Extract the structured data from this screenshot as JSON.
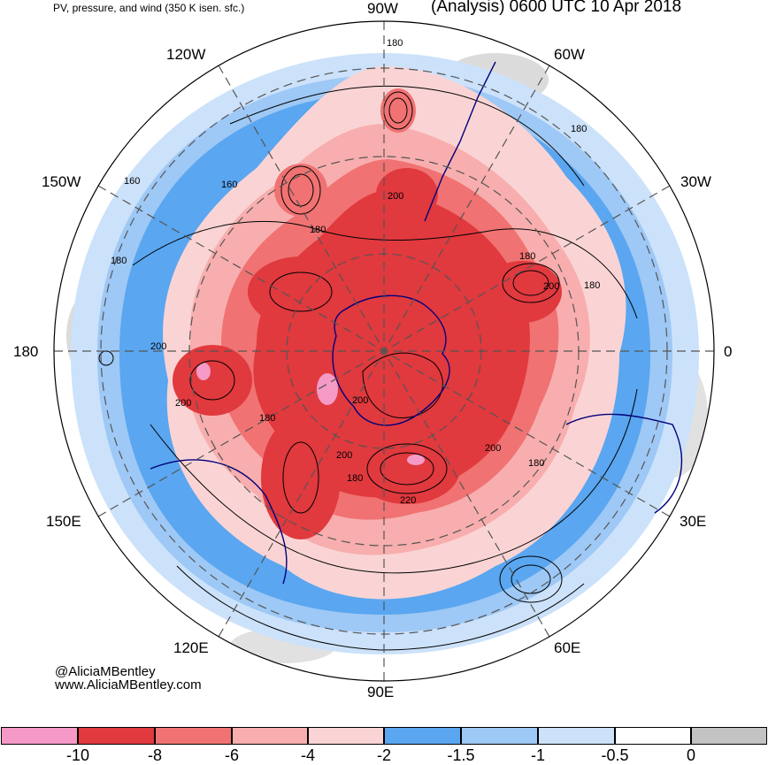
{
  "header": {
    "left_title": "PV, pressure, and wind (350 K isen. sfc.)",
    "right_title": "(Analysis) 0600 UTC 10 Apr 2018"
  },
  "longitude_labels": {
    "lon_90w": "90W",
    "lon_60w": "60W",
    "lon_30w": "30W",
    "lon_0": "0",
    "lon_30e": "30E",
    "lon_60e": "60E",
    "lon_90e": "90E",
    "lon_120e": "120E",
    "lon_150e": "150E",
    "lon_180": "180",
    "lon_150w": "150W",
    "lon_120w": "120W"
  },
  "contour_labels": [
    "180",
    "180",
    "160",
    "160",
    "180",
    "200",
    "180",
    "200",
    "180",
    "180",
    "200",
    "200",
    "180",
    "200",
    "200",
    "200",
    "180",
    "180",
    "220"
  ],
  "credit": {
    "handle": "@AliciaMBentley",
    "website": "www.AliciaMBentley.com"
  },
  "colorbar": {
    "colors": [
      "#f59ac6",
      "#e0393e",
      "#f07272",
      "#f8aeae",
      "#fad4d4",
      "#5aa6f0",
      "#9ec8f5",
      "#cce2fa",
      "#ffffff",
      "#c3c3c3"
    ],
    "tick_labels": [
      "-10",
      "-8",
      "-6",
      "-4",
      "-2",
      "-1.5",
      "-1",
      "-0.5",
      "0"
    ]
  }
}
